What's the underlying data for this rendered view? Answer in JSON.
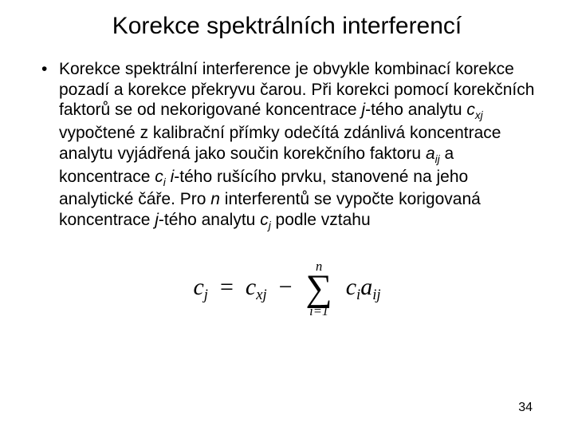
{
  "title": "Korekce spektrálních interferencí",
  "bullet_text_parts": [
    "Korekce spektrální interference je obvykle kombinací korekce pozadí a korekce překryvu čarou. Při korekci pomocí korekčních faktorů se od nekorigované koncentrace ",
    "j",
    "-tého analytu ",
    "c",
    "xj",
    " vypočtené z kalibrační přímky odečítá zdánlivá koncentrace analytu vyjádřená jako součin korekčního faktoru ",
    "a",
    "ij",
    " a koncentrace ",
    "c",
    "i",
    " ",
    "i",
    "-tého rušícího prvku, stanovené na jeho analytické čáře. Pro ",
    "n",
    " interferentů se vypočte korigovaná koncentrace ",
    "j",
    "-tého analytu ",
    "c",
    "j",
    " podle vztahu"
  ],
  "formula": {
    "lhs_var": "c",
    "lhs_sub": "j",
    "eq": "=",
    "t1_var": "c",
    "t1_sub": "xj",
    "minus": "−",
    "sum_top": "n",
    "sum_sigma": "∑",
    "sum_bottom": "i=1",
    "t2a_var": "c",
    "t2a_sub": "i",
    "t2b_var": "a",
    "t2b_sub": "ij"
  },
  "page_number": "34",
  "colors": {
    "bg": "#ffffff",
    "text": "#000000"
  }
}
